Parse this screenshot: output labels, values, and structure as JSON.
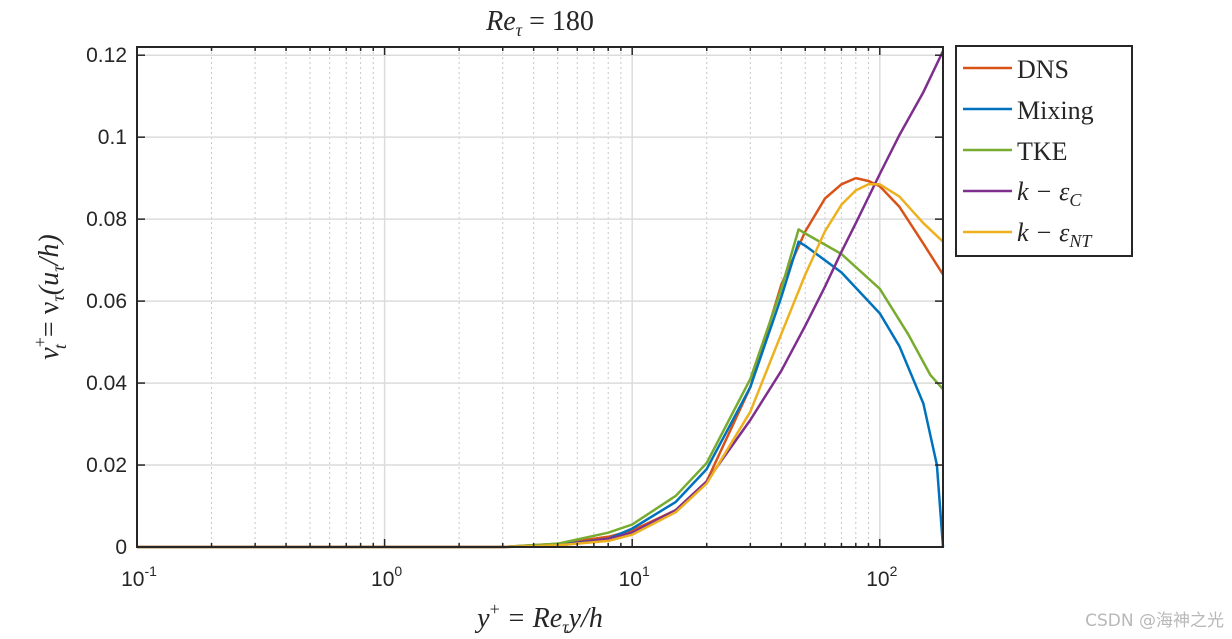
{
  "chart_data": {
    "type": "line",
    "title": "Re_τ = 180",
    "title_parts": {
      "main": "Re",
      "sub": "τ",
      "rest": " = 180"
    },
    "xscale": "log",
    "xlim": [
      0.1,
      180
    ],
    "ylim": [
      0,
      0.122
    ],
    "xticks": [
      {
        "value": 0.1,
        "base": "10",
        "exp": "-1"
      },
      {
        "value": 1,
        "base": "10",
        "exp": "0"
      },
      {
        "value": 10,
        "base": "10",
        "exp": "1"
      },
      {
        "value": 100,
        "base": "10",
        "exp": "2"
      }
    ],
    "yticks": [
      {
        "value": 0,
        "label": "0"
      },
      {
        "value": 0.02,
        "label": "0.02"
      },
      {
        "value": 0.04,
        "label": "0.04"
      },
      {
        "value": 0.06,
        "label": "0.06"
      },
      {
        "value": 0.08,
        "label": "0.08"
      },
      {
        "value": 0.1,
        "label": "0.1"
      },
      {
        "value": 0.12,
        "label": "0.12"
      }
    ],
    "xlabel": "y⁺ = Re_τ y/h",
    "xlabel_parts": {
      "a": "y",
      "a_sup": "+",
      "b": " = Re",
      "b_sub": "τ",
      "c": "y/h"
    },
    "ylabel": "ν_t⁺ = ν_τ(u_τ/h)",
    "ylabel_parts": {
      "a": "ν",
      "a_sup": "+",
      "a_sub": "t",
      "b": " = ν",
      "b_sub": "τ",
      "c": "(u",
      "c_sub": "τ",
      "d": "/h)"
    },
    "grid": true,
    "legend_position": "outside-top-right",
    "series": [
      {
        "name": "DNS",
        "legend_main": "DNS",
        "legend_sub": "",
        "color": "#D95319",
        "x": [
          0.1,
          3,
          5,
          8,
          10,
          15,
          20,
          30,
          40,
          50,
          60,
          70,
          80,
          90,
          100,
          120,
          150,
          180
        ],
        "y": [
          0,
          0,
          0.0008,
          0.0025,
          0.004,
          0.009,
          0.016,
          0.039,
          0.064,
          0.077,
          0.085,
          0.0885,
          0.09,
          0.0893,
          0.088,
          0.083,
          0.074,
          0.0665
        ]
      },
      {
        "name": "Mixing",
        "legend_main": "Mixing",
        "legend_sub": "",
        "color": "#0072BD",
        "x": [
          0.1,
          3,
          5,
          8,
          10,
          15,
          20,
          30,
          40,
          47,
          50,
          70,
          100,
          120,
          150,
          170,
          180
        ],
        "y": [
          0,
          0,
          0.0005,
          0.002,
          0.0045,
          0.011,
          0.019,
          0.039,
          0.061,
          0.0745,
          0.0735,
          0.067,
          0.057,
          0.049,
          0.035,
          0.02,
          0
        ]
      },
      {
        "name": "TKE",
        "legend_main": "TKE",
        "legend_sub": "",
        "color": "#77AC30",
        "x": [
          0.1,
          3,
          5,
          8,
          10,
          15,
          20,
          30,
          40,
          47,
          50,
          70,
          100,
          130,
          160,
          180
        ],
        "y": [
          0,
          0,
          0.0008,
          0.0035,
          0.0055,
          0.0125,
          0.0205,
          0.041,
          0.063,
          0.0775,
          0.0765,
          0.0715,
          0.063,
          0.052,
          0.042,
          0.0385
        ]
      },
      {
        "name": "k − ε_C",
        "legend_main": "k − ε",
        "legend_sub": "C",
        "color": "#7E2F8E",
        "x": [
          0.1,
          3,
          5,
          8,
          10,
          15,
          20,
          30,
          40,
          50,
          60,
          70,
          80,
          100,
          120,
          150,
          180
        ],
        "y": [
          0,
          0,
          0.0003,
          0.002,
          0.0035,
          0.009,
          0.016,
          0.031,
          0.043,
          0.054,
          0.0635,
          0.072,
          0.079,
          0.091,
          0.1005,
          0.111,
          0.121
        ]
      },
      {
        "name": "k − ε_NT",
        "legend_main": "k − ε",
        "legend_sub": "NT",
        "color": "#EDB120",
        "x": [
          0.1,
          3,
          5,
          8,
          10,
          15,
          20,
          30,
          40,
          50,
          60,
          70,
          80,
          90,
          100,
          120,
          150,
          180
        ],
        "y": [
          0,
          0,
          0.0004,
          0.0015,
          0.003,
          0.0085,
          0.0155,
          0.033,
          0.052,
          0.0665,
          0.077,
          0.0835,
          0.087,
          0.0885,
          0.0885,
          0.0855,
          0.079,
          0.0745
        ]
      }
    ]
  },
  "watermark": "CSDN @海神之光"
}
